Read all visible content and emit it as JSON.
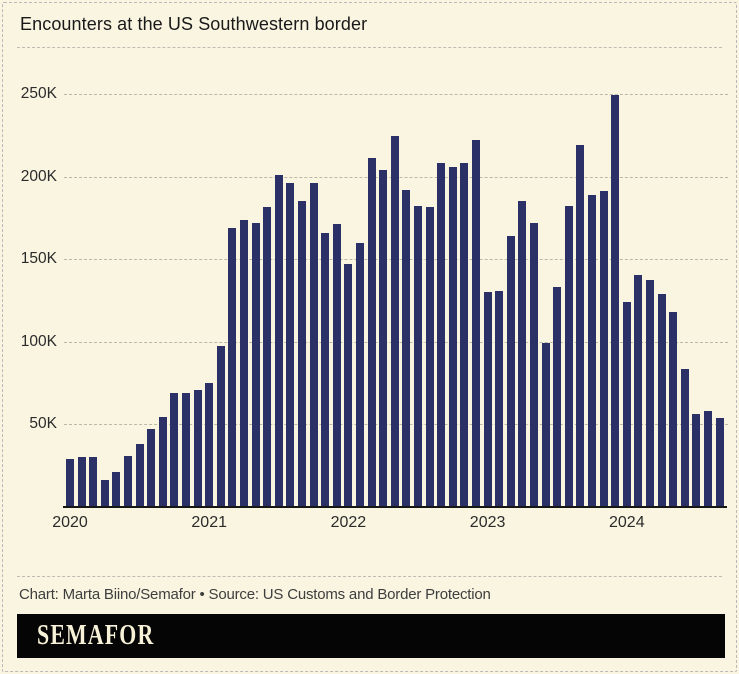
{
  "title": "Encounters at the US Southwestern border",
  "footer": {
    "credit": "Chart: Marta Biino/Semafor • Source: US Customs and Border Protection",
    "logo": "SEMAFOR"
  },
  "colors": {
    "background": "#f9f5e1",
    "bar": "#2b3067",
    "gridline": "#bcb8a9",
    "axis_line": "#161616",
    "logo_bar": "#050505",
    "logo_text": "#f7f1d8"
  },
  "chart_data": {
    "type": "bar",
    "title": "Encounters at the US Southwestern border",
    "unit": "thousands of encounters (K)",
    "xlabel": "",
    "ylabel": "",
    "ylim": [
      0,
      250
    ],
    "yticks": [
      50,
      100,
      150,
      200,
      250
    ],
    "ytick_labels": [
      "50K",
      "100K",
      "150K",
      "200K",
      "250K"
    ],
    "xtick_labels": [
      "2020",
      "2021",
      "2022",
      "2023",
      "2024"
    ],
    "xtick_month_indices": [
      0,
      12,
      24,
      36,
      48
    ],
    "grid": "horizontal dashed",
    "legend": "none",
    "months": [
      "Jan 2020",
      "Feb 2020",
      "Mar 2020",
      "Apr 2020",
      "May 2020",
      "Jun 2020",
      "Jul 2020",
      "Aug 2020",
      "Sep 2020",
      "Oct 2020",
      "Nov 2020",
      "Dec 2020",
      "Jan 2021",
      "Feb 2021",
      "Mar 2021",
      "Apr 2021",
      "May 2021",
      "Jun 2021",
      "Jul 2021",
      "Aug 2021",
      "Sep 2021",
      "Oct 2021",
      "Nov 2021",
      "Dec 2021",
      "Jan 2022",
      "Feb 2022",
      "Mar 2022",
      "Apr 2022",
      "May 2022",
      "Jun 2022",
      "Jul 2022",
      "Aug 2022",
      "Sep 2022",
      "Oct 2022",
      "Nov 2022",
      "Dec 2022",
      "Jan 2023",
      "Feb 2023",
      "Mar 2023",
      "Apr 2023",
      "May 2023",
      "Jun 2023",
      "Jul 2023",
      "Aug 2023",
      "Sep 2023",
      "Oct 2023",
      "Nov 2023",
      "Dec 2023",
      "Jan 2024",
      "Feb 2024",
      "Mar 2024",
      "Apr 2024",
      "May 2024",
      "Jun 2024",
      "Jul 2024",
      "Aug 2024",
      "Sep 2024"
    ],
    "values": [
      29.2,
      30.1,
      30.0,
      16.2,
      21.5,
      30.7,
      38.0,
      47.3,
      54.8,
      69.0,
      69.3,
      71.1,
      75.3,
      97.6,
      169.2,
      173.7,
      172.0,
      181.6,
      200.7,
      196.3,
      185.5,
      196.0,
      166.0,
      171.2,
      147.3,
      159.9,
      211.0,
      204.0,
      224.4,
      192.0,
      182.0,
      181.5,
      208.0,
      206.0,
      208.5,
      222.0,
      130.0,
      131.0,
      164.0,
      185.0,
      172.0,
      99.5,
      133.0,
      182.0,
      219.0,
      189.0,
      191.5,
      249.7,
      124.2,
      140.6,
      137.5,
      129.0,
      118.0,
      83.5,
      56.4,
      58.0,
      53.9
    ]
  }
}
